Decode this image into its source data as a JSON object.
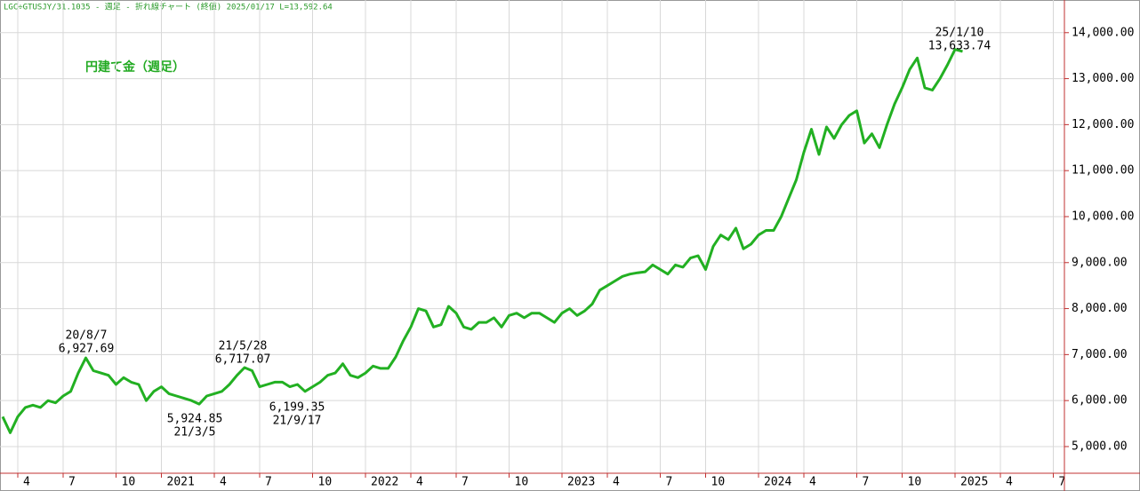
{
  "chart_data": {
    "type": "line",
    "header": "LGC÷GTUSJY/31.1035 - 週足 - 折れ線チャート (終値)  2025/01/17 L=13,592.64",
    "categories": [
      null,
      null,
      "4",
      null,
      null,
      null,
      null,
      null,
      "7",
      null,
      null,
      null,
      null,
      null,
      null,
      "10",
      null,
      null,
      null,
      null,
      null,
      "2021",
      null,
      null,
      null,
      null,
      null,
      null,
      "4",
      null,
      null,
      null,
      null,
      null,
      "7",
      null,
      null,
      null,
      null,
      null,
      null,
      "10",
      null,
      null,
      null,
      null,
      null,
      null,
      "2022",
      null,
      null,
      null,
      null,
      null,
      "4",
      null,
      null,
      null,
      null,
      null,
      "7",
      null,
      null,
      null,
      null,
      null,
      null,
      "10",
      null,
      null,
      null,
      null,
      null,
      null,
      "2023",
      null,
      null,
      null,
      null,
      null,
      "4",
      null,
      null,
      null,
      null,
      null,
      null,
      "7",
      null,
      null,
      null,
      null,
      null,
      "10",
      null,
      null,
      null,
      null,
      null,
      null,
      "2024",
      null,
      null,
      null,
      null,
      null,
      "4",
      null,
      null,
      null,
      null,
      null,
      null,
      "7",
      null,
      null,
      null,
      null,
      null,
      "10",
      null,
      null,
      null,
      null,
      null,
      null,
      "2025",
      null,
      null,
      null,
      null,
      null,
      "4",
      null,
      null,
      null,
      null,
      null,
      null,
      "7",
      null
    ],
    "series": [
      {
        "name": "円建て金（週足）",
        "color": "#22b022",
        "values": [
          5650,
          5300,
          5650,
          5850,
          5900,
          5850,
          6000,
          5950,
          6100,
          6200,
          6600,
          6927.69,
          6650,
          6600,
          6550,
          6350,
          6500,
          6400,
          6350,
          6000,
          6200,
          6300,
          6150,
          6100,
          6050,
          6000,
          5924.85,
          6100,
          6150,
          6200,
          6350,
          6550,
          6717.07,
          6650,
          6300,
          6350,
          6400,
          6400,
          6300,
          6350,
          6199.35,
          6300,
          6400,
          6550,
          6600,
          6800,
          6550,
          6500,
          6600,
          6750,
          6700,
          6700,
          6950,
          7300,
          7600,
          8000,
          7950,
          7600,
          7650,
          8050,
          7900,
          7600,
          7550,
          7700,
          7700,
          7800,
          7600,
          7850,
          7900,
          7800,
          7900,
          7900,
          7800,
          7700,
          7900,
          8000,
          7850,
          7950,
          8100,
          8400,
          8500,
          8600,
          8700,
          8750,
          8780,
          8800,
          8950,
          8850,
          8750,
          8950,
          8900,
          9100,
          9150,
          8850,
          9350,
          9600,
          9500,
          9750,
          9300,
          9400,
          9600,
          9700,
          9700,
          10000,
          10400,
          10800,
          11400,
          11900,
          11350,
          11950,
          11700,
          12000,
          12200,
          12300,
          11600,
          11800,
          11500,
          12000,
          12450,
          12800,
          13200,
          13450,
          12800,
          12750,
          13000,
          13300,
          13633.74,
          13592.64,
          null,
          null,
          null,
          null,
          null,
          null,
          null,
          null,
          null,
          null,
          null,
          null,
          null
        ]
      }
    ],
    "ylim": [
      4420,
      14710
    ],
    "yticks": [
      {
        "value": 5000,
        "label": "5,000.00"
      },
      {
        "value": 6000,
        "label": "6,000.00"
      },
      {
        "value": 7000,
        "label": "7,000.00"
      },
      {
        "value": 8000,
        "label": "8,000.00"
      },
      {
        "value": 9000,
        "label": "9,000.00"
      },
      {
        "value": 10000,
        "label": "10,000.00"
      },
      {
        "value": 11000,
        "label": "11,000.00"
      },
      {
        "value": 12000,
        "label": "12,000.00"
      },
      {
        "value": 13000,
        "label": "13,000.00"
      },
      {
        "value": 14000,
        "label": "14,000.00"
      }
    ],
    "grid": true,
    "annotations": [
      [
        "20/8/7",
        "6,927.69"
      ],
      [
        "5,924.85",
        "21/3/5"
      ],
      [
        "21/5/28",
        "6,717.07"
      ],
      [
        "6,199.35",
        "21/9/17"
      ],
      [
        "25/1/10",
        "13,633.74"
      ]
    ]
  }
}
